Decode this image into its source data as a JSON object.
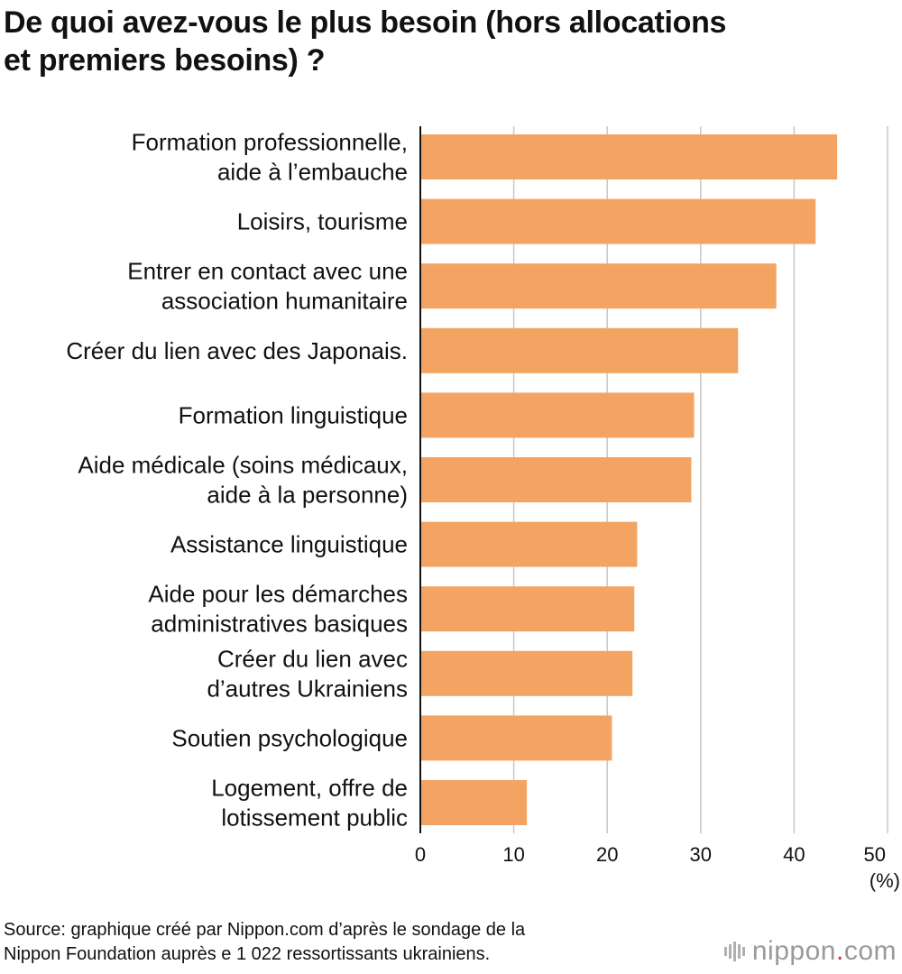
{
  "chart_data": {
    "type": "bar",
    "orientation": "horizontal",
    "title": "De quoi avez-vous le plus besoin (hors allocations\net premiers besoins) ?",
    "categories": [
      "Formation professionnelle,\naide à l’embauche",
      "Loisirs, tourisme",
      "Entrer en contact avec une\nassociation humanitaire",
      "Créer du lien avec des Japonais.",
      "Formation linguistique",
      "Aide médicale (soins médicaux,\naide à la personne)",
      "Assistance linguistique",
      "Aide pour les démarches\nadministratives basiques",
      "Créer du lien avec\nd’autres Ukrainiens",
      "Soutien psychologique",
      "Logement, offre de\nlotissement public"
    ],
    "values": [
      44.6,
      42.3,
      38.1,
      34.0,
      29.3,
      29.0,
      23.2,
      22.9,
      22.7,
      20.5,
      11.4
    ],
    "xlim": [
      0,
      50
    ],
    "xticks": [
      0,
      10,
      20,
      30,
      40,
      50
    ],
    "xunit": "(%)",
    "bar_color": "#f3a462",
    "grid": true,
    "source": "Source: graphique créé par Nippon.com d’après le sondage de la\nNippon Foundation auprès e 1 022 ressortissants ukrainiens."
  },
  "brand": {
    "name": "nippon",
    "dot": ".",
    "suffix": "com"
  }
}
